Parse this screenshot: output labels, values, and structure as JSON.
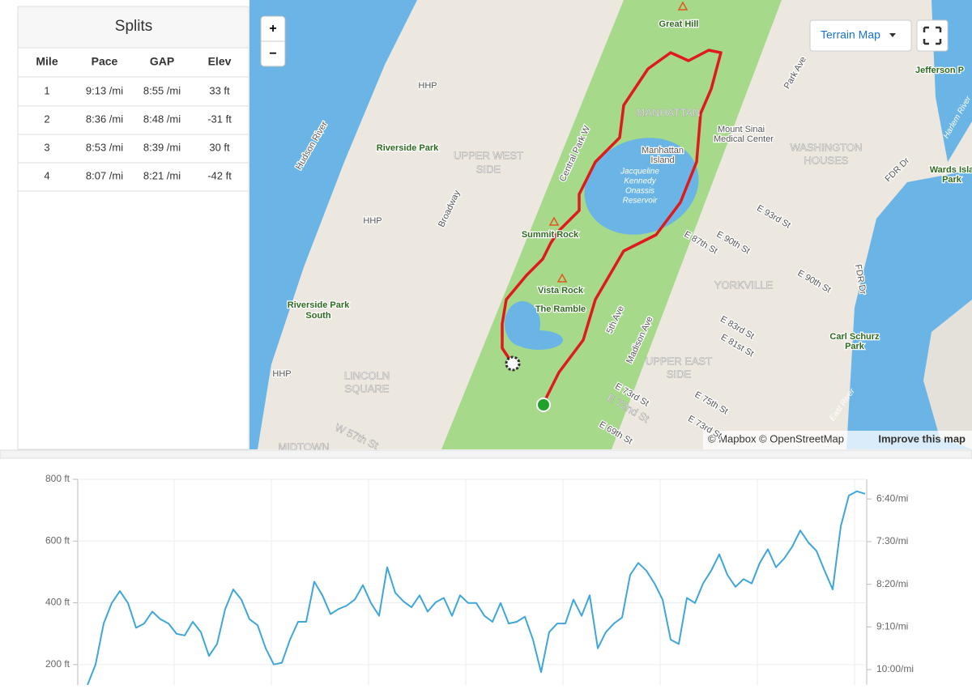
{
  "splits": {
    "title": "Splits",
    "headers": [
      "Mile",
      "Pace",
      "GAP",
      "Elev"
    ],
    "rows": [
      [
        "1",
        "9:13 /mi",
        "8:55 /mi",
        "33 ft"
      ],
      [
        "2",
        "8:36 /mi",
        "8:48 /mi",
        "-31 ft"
      ],
      [
        "3",
        "8:53 /mi",
        "8:39 /mi",
        "30 ft"
      ],
      [
        "4",
        "8:07 /mi",
        "8:21 /mi",
        "-42 ft"
      ]
    ]
  },
  "map": {
    "zoom_in": "+",
    "zoom_out": "−",
    "layer_button": "Terrain Map",
    "attribution": "© Mapbox © OpenStreetMap",
    "improve": "Improve this map",
    "labels": [
      "Great Hill",
      "MANHATTAN",
      "Mount Sinai",
      "Medical Center",
      "HHP",
      "HHP",
      "HHP",
      "Hudson River",
      "Riverside Park",
      "UPPER WEST",
      "SIDE",
      "Broadway",
      "Central Park W",
      "Manhattan",
      "Island",
      "Jacqueline",
      "Kennedy",
      "Onassis",
      "Reservoir",
      "WASHINGTON",
      "HOUSES",
      "Park Ave",
      "Jefferson P",
      "Harlem River",
      "FDR Dr",
      "Wards Isla",
      "Park",
      "Summit Rock",
      "E 93rd St",
      "E 87th St",
      "E 90th St",
      "E 90th St",
      "YORKVILLE",
      "FDR Dr",
      "Vista Rock",
      "The Ramble",
      "Riverside Park",
      "South",
      "5th Ave",
      "Madison Ave",
      "E 83rd St",
      "E 81st St",
      "Carl Schurz",
      "Park",
      "UPPER EAST",
      "SIDE",
      "LINCOLN",
      "SQUARE",
      "E 73rd St",
      "E 75th St",
      "E 72nd St",
      "E 73rd St",
      "E 69th St",
      "W 57th St",
      "MIDTOWN",
      "East River"
    ]
  },
  "chart_data": {
    "type": "line",
    "ylim": [
      134,
      800
    ],
    "yticks": [
      {
        "value": 800,
        "label": "800 ft"
      },
      {
        "value": 600,
        "label": "600 ft"
      },
      {
        "value": 400,
        "label": "400 ft"
      },
      {
        "value": 200,
        "label": "200 ft"
      }
    ],
    "y2lim": [
      377,
      618
    ],
    "y2_inverted": true,
    "y2ticks": [
      {
        "value": 400,
        "label": "6:40/mi"
      },
      {
        "value": 450,
        "label": "7:30/mi"
      },
      {
        "value": 500,
        "label": "8:20/mi"
      },
      {
        "value": 550,
        "label": "9:10/mi"
      },
      {
        "value": 600,
        "label": "10:00/mi"
      }
    ],
    "grid": true,
    "series": [
      {
        "color": "#3ea6d8",
        "axis": "y2",
        "values": [
          618,
          594,
          546,
          522,
          508,
          522,
          551,
          546,
          532,
          541,
          546,
          558,
          560,
          544,
          556,
          584,
          570,
          529,
          506,
          518,
          541,
          548,
          575,
          594,
          592,
          565,
          544,
          544,
          497,
          513,
          535,
          529,
          525,
          518,
          501,
          522,
          537,
          480,
          510,
          520,
          527,
          513,
          532,
          521,
          516,
          537,
          513,
          522,
          522,
          537,
          544,
          522,
          546,
          544,
          538,
          565,
          603,
          556,
          546,
          546,
          518,
          537,
          513,
          575,
          556,
          546,
          539,
          489,
          475,
          484,
          499,
          518,
          565,
          570,
          516,
          522,
          499,
          484,
          465,
          489,
          503,
          494,
          499,
          475,
          459,
          480,
          470,
          456,
          437,
          451,
          461,
          484,
          506,
          432,
          396,
          391,
          394
        ]
      }
    ]
  }
}
